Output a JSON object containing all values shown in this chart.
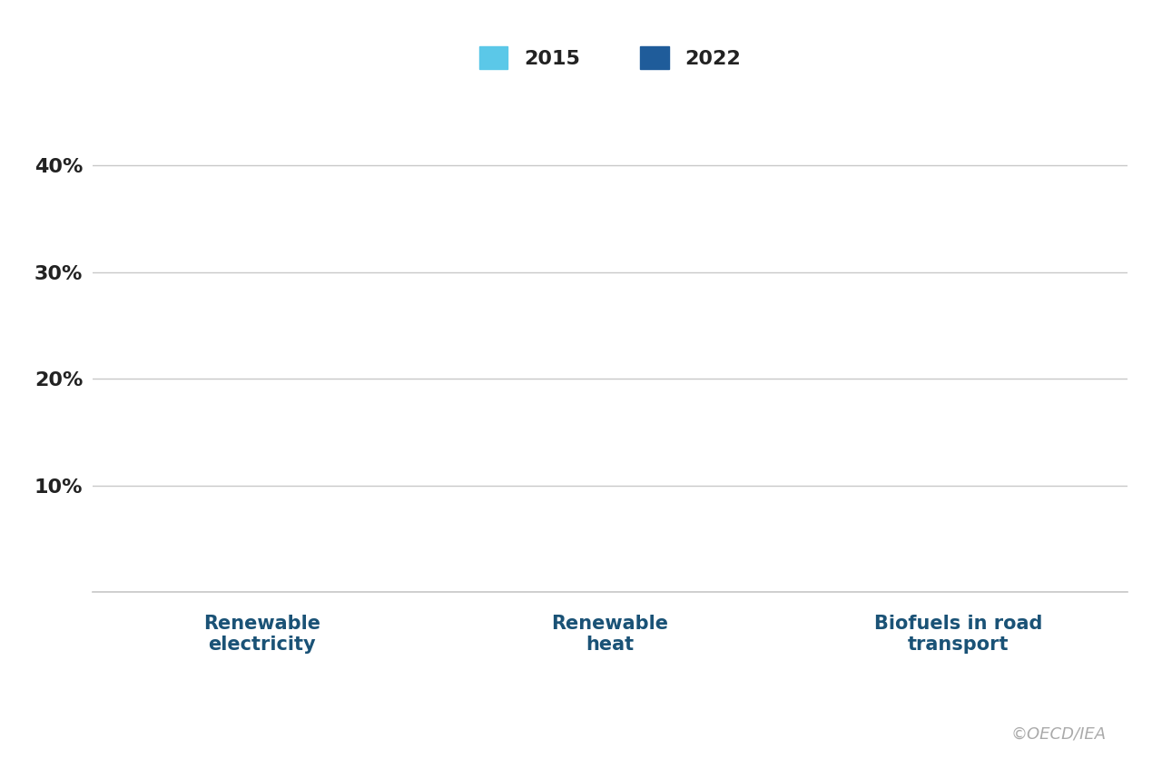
{
  "categories": [
    "Renewable\nelectricity",
    "Renewable\nheat",
    "Biofuels in road\ntransport"
  ],
  "values_2015": [
    0,
    0,
    0
  ],
  "values_2022": [
    0,
    0,
    0
  ],
  "color_2015": "#5BC8E8",
  "color_2022": "#1F5C9A",
  "legend_labels": [
    "2015",
    "2022"
  ],
  "yticks": [
    0,
    10,
    20,
    30,
    40
  ],
  "ytick_labels": [
    "",
    "10%",
    "20%",
    "30%",
    "40%"
  ],
  "ylim": [
    0,
    47
  ],
  "background_color": "#FFFFFF",
  "grid_color": "#C8C8C8",
  "xlabel_color": "#1A5276",
  "ytick_color": "#222222",
  "watermark": "©OECD/IEA",
  "watermark_color": "#AAAAAA",
  "bar_width": 0.35,
  "xlabel_fontsize": 15,
  "ytick_fontsize": 16,
  "legend_fontsize": 16,
  "watermark_fontsize": 13
}
